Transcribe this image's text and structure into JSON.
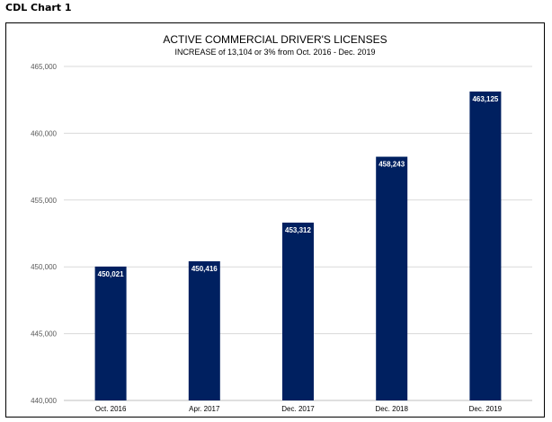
{
  "caption": "CDL Chart 1",
  "chart_data": {
    "type": "bar",
    "title": "ACTIVE COMMERCIAL DRIVER'S LICENSES",
    "subtitle": "INCREASE of 13,104 or 3% from Oct. 2016 - Dec. 2019",
    "categories": [
      "Oct. 2016",
      "Apr. 2017",
      "Dec. 2017",
      "Dec. 2018",
      "Dec. 2019"
    ],
    "values": [
      450021,
      450416,
      453312,
      458243,
      463125
    ],
    "data_labels": [
      "450,021",
      "450,416",
      "453,312",
      "458,243",
      "463,125"
    ],
    "ylim": [
      440000,
      465000
    ],
    "y_ticks": [
      440000,
      445000,
      450000,
      455000,
      460000,
      465000
    ],
    "y_tick_labels": [
      "440,000",
      "445,000",
      "450,000",
      "455,000",
      "460,000",
      "465,000"
    ],
    "xlabel": "",
    "ylabel": "",
    "grid": true,
    "legend": "none",
    "bar_color": "#002060"
  }
}
